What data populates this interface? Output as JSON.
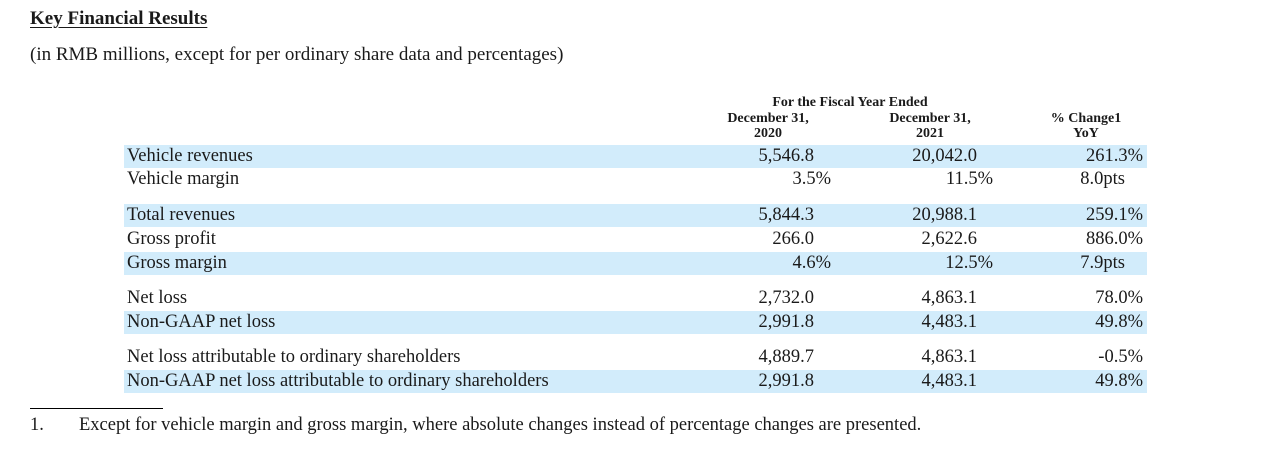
{
  "title": "Key Financial Results",
  "subtitle": "(in RMB millions, except for per ordinary share data and percentages)",
  "header": {
    "fiscal_year": "For the Fiscal Year Ended",
    "col1": "December 31,\n2020",
    "col2": "December 31,\n2021",
    "col3": "% Change1\nYoY"
  },
  "rows": [
    {
      "label": "Vehicle revenues",
      "v1": "5,546.8",
      "v2": "20,042.0",
      "v3": "261.3%"
    },
    {
      "label": "Vehicle margin",
      "v1": "3.5%",
      "v2": "11.5%",
      "v3": "8.0pts"
    },
    {
      "label": "Total revenues",
      "v1": "5,844.3",
      "v2": "20,988.1",
      "v3": "259.1%"
    },
    {
      "label": "Gross profit",
      "v1": "266.0",
      "v2": "2,622.6",
      "v3": "886.0%"
    },
    {
      "label": "Gross margin",
      "v1": "4.6%",
      "v2": "12.5%",
      "v3": "7.9pts"
    },
    {
      "label": "Net loss",
      "v1": "2,732.0",
      "v2": "4,863.1",
      "v3": "78.0%"
    },
    {
      "label": "Non-GAAP net loss",
      "v1": "2,991.8",
      "v2": "4,483.1",
      "v3": "49.8%"
    },
    {
      "label": "Net loss attributable to ordinary shareholders",
      "v1": "4,889.7",
      "v2": "4,863.1",
      "v3": "-0.5%"
    },
    {
      "label": "Non-GAAP net loss attributable to ordinary shareholders",
      "v1": "2,991.8",
      "v2": "4,483.1",
      "v3": "49.8%"
    }
  ],
  "footnote": {
    "number": "1.",
    "text": "Except for vehicle margin and gross margin, where absolute changes instead of percentage changes are presented."
  },
  "colors": {
    "band": "#d2ecfb"
  }
}
